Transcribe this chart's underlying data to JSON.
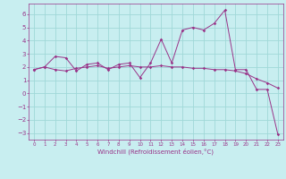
{
  "xlabel": "Windchill (Refroidissement éolien,°C)",
  "bg_color": "#c8eef0",
  "line_color": "#993388",
  "grid_color": "#a0d8d8",
  "xlim": [
    -0.5,
    23.5
  ],
  "ylim": [
    -3.5,
    6.8
  ],
  "xticks": [
    0,
    1,
    2,
    3,
    4,
    5,
    6,
    7,
    8,
    9,
    10,
    11,
    12,
    13,
    14,
    15,
    16,
    17,
    18,
    19,
    20,
    21,
    22,
    23
  ],
  "yticks": [
    -3,
    -2,
    -1,
    0,
    1,
    2,
    3,
    4,
    5,
    6
  ],
  "series1": [
    [
      0,
      1.8
    ],
    [
      1,
      2.0
    ],
    [
      2,
      2.8
    ],
    [
      3,
      2.7
    ],
    [
      4,
      1.7
    ],
    [
      5,
      2.2
    ],
    [
      6,
      2.3
    ],
    [
      7,
      1.8
    ],
    [
      8,
      2.2
    ],
    [
      9,
      2.3
    ],
    [
      10,
      1.2
    ],
    [
      11,
      2.3
    ],
    [
      12,
      4.1
    ],
    [
      13,
      2.3
    ],
    [
      14,
      4.8
    ],
    [
      15,
      5.0
    ],
    [
      16,
      4.8
    ],
    [
      17,
      5.3
    ],
    [
      18,
      6.3
    ],
    [
      19,
      1.8
    ],
    [
      20,
      1.8
    ],
    [
      21,
      0.3
    ],
    [
      22,
      0.3
    ],
    [
      23,
      -3.1
    ]
  ],
  "series2": [
    [
      0,
      1.8
    ],
    [
      1,
      2.0
    ],
    [
      2,
      1.8
    ],
    [
      3,
      1.7
    ],
    [
      4,
      1.9
    ],
    [
      5,
      2.0
    ],
    [
      6,
      2.1
    ],
    [
      7,
      1.9
    ],
    [
      8,
      2.0
    ],
    [
      9,
      2.1
    ],
    [
      10,
      2.0
    ],
    [
      11,
      2.0
    ],
    [
      12,
      2.1
    ],
    [
      13,
      2.0
    ],
    [
      14,
      2.0
    ],
    [
      15,
      1.9
    ],
    [
      16,
      1.9
    ],
    [
      17,
      1.8
    ],
    [
      18,
      1.8
    ],
    [
      19,
      1.7
    ],
    [
      20,
      1.5
    ],
    [
      21,
      1.1
    ],
    [
      22,
      0.8
    ],
    [
      23,
      0.4
    ]
  ]
}
